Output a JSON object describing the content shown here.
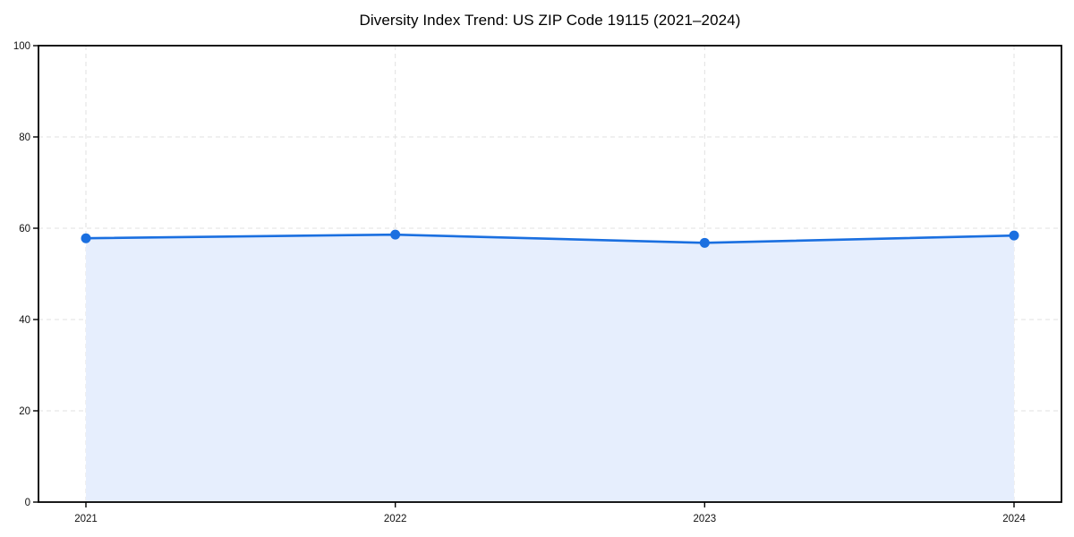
{
  "chart_data": {
    "type": "area",
    "title": "Diversity Index Trend: US ZIP Code 19115 (2021–2024)",
    "x": [
      "2021",
      "2022",
      "2023",
      "2024"
    ],
    "series": [
      {
        "name": "Diversity Index",
        "values": [
          57.8,
          58.6,
          56.8,
          58.4
        ]
      }
    ],
    "xlabel": "",
    "ylabel": "",
    "ylim": [
      0,
      100
    ],
    "yticks": [
      0,
      20,
      40,
      60,
      80,
      100
    ],
    "grid": true,
    "grid_style": "dashed",
    "legend": "none",
    "colors": {
      "line": "#1a6fe0",
      "marker": "#1a6fe0",
      "area_fill": "#e6eefd",
      "gridline": "#e1e1e1",
      "spine": "#000000",
      "tick_label": "#111111",
      "title": "#000000",
      "background": "#ffffff"
    }
  }
}
